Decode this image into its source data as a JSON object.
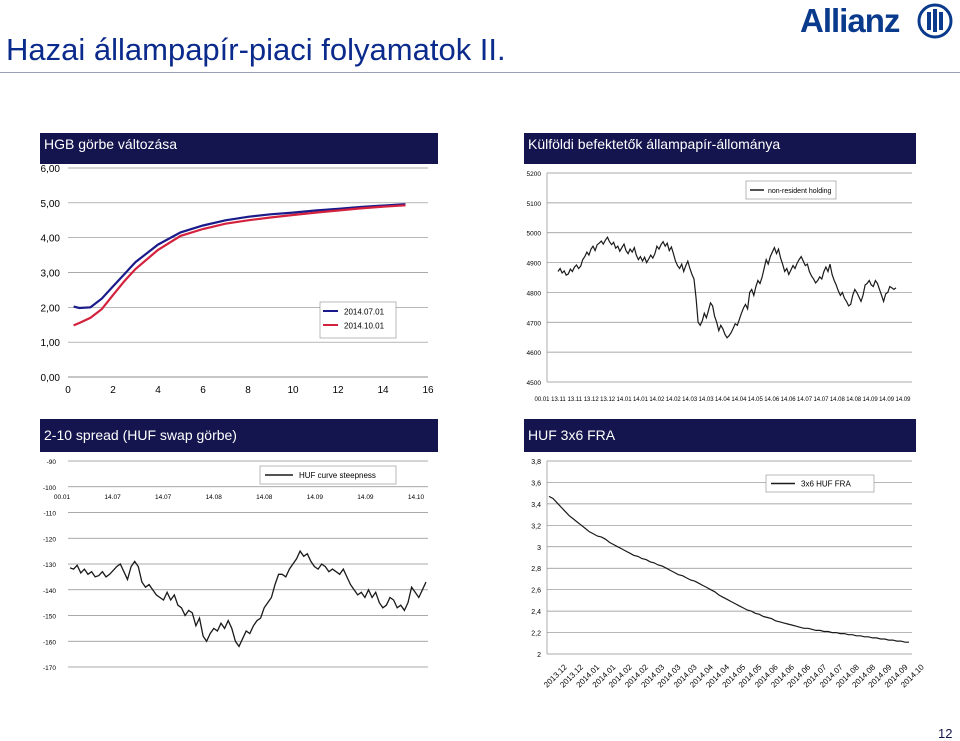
{
  "page": {
    "title": "Hazai állampapír-piaci folyamatok II.",
    "logo": "Allianz",
    "page_number": "12"
  },
  "colors": {
    "header_bg": "#14144e",
    "line_dark": "#1a1a1a",
    "curve_dark_blue": "#1a1a8a",
    "curve_red": "#d4213d",
    "grid": "#8c8c8c"
  },
  "panels": {
    "p1": {
      "heading": "HGB görbe változása"
    },
    "p2": {
      "heading": "Külföldi befektetők állampapír-állománya"
    },
    "p3": {
      "heading": "2-10 spread (HUF swap görbe)"
    },
    "p4": {
      "heading": "HUF 3x6 FRA"
    }
  },
  "chart_data": [
    {
      "id": "hgb",
      "type": "line",
      "ylim": [
        0,
        6
      ],
      "xlim": [
        0,
        16
      ],
      "y_ticks": [
        "0,00",
        "1,00",
        "2,00",
        "3,00",
        "4,00",
        "5,00",
        "6,00"
      ],
      "x_ticks": [
        "0",
        "2",
        "4",
        "6",
        "8",
        "10",
        "12",
        "14",
        "16"
      ],
      "series": [
        {
          "name": "2014.07.01",
          "color": "#1a1a8a",
          "x": [
            0.25,
            0.5,
            1,
            1.5,
            2,
            2.5,
            3,
            4,
            5,
            6,
            7,
            8,
            9,
            10,
            11,
            12,
            13,
            14,
            15
          ],
          "y": [
            2.02,
            1.98,
            2.0,
            2.25,
            2.6,
            2.95,
            3.3,
            3.8,
            4.15,
            4.35,
            4.5,
            4.6,
            4.67,
            4.72,
            4.78,
            4.83,
            4.88,
            4.92,
            4.96
          ]
        },
        {
          "name": "2014.10.01",
          "color": "#d4213d",
          "x": [
            0.25,
            0.5,
            1,
            1.5,
            2,
            2.5,
            3,
            4,
            5,
            6,
            7,
            8,
            9,
            10,
            11,
            12,
            13,
            14,
            15
          ],
          "y": [
            1.48,
            1.55,
            1.7,
            1.95,
            2.35,
            2.75,
            3.1,
            3.65,
            4.05,
            4.25,
            4.4,
            4.5,
            4.58,
            4.65,
            4.72,
            4.78,
            4.84,
            4.89,
            4.93
          ]
        }
      ]
    },
    {
      "id": "foreign_holdings",
      "type": "line",
      "ylim": [
        4500,
        5200
      ],
      "y_ticks": [
        "4500",
        "4600",
        "4700",
        "4800",
        "4900",
        "5000",
        "5100",
        "5200"
      ],
      "x_ticks": [
        "00.01",
        "13.11",
        "13.11",
        "13.12",
        "13.12",
        "14.01",
        "14.01",
        "14.02",
        "14.02",
        "14.03",
        "14.03",
        "14.04",
        "14.04",
        "14.05",
        "14.06",
        "14.06",
        "14.07",
        "14.07",
        "14.08",
        "14.08",
        "14.09",
        "14.09",
        "14.09"
      ],
      "series": [
        {
          "name": "non-resident holding",
          "color": "#1a1a1a",
          "values": [
            4870,
            4880,
            4865,
            4872,
            4858,
            4862,
            4878,
            4870,
            4885,
            4892,
            4880,
            4888,
            4910,
            4920,
            4935,
            4925,
            4945,
            4955,
            4940,
            4960,
            4965,
            4972,
            4962,
            4975,
            4985,
            4970,
            4960,
            4968,
            4948,
            4955,
            4938,
            4950,
            4962,
            4940,
            4930,
            4945,
            4935,
            4950,
            4925,
            4910,
            4920,
            4905,
            4918,
            4900,
            4912,
            4925,
            4915,
            4930,
            4955,
            4945,
            4960,
            4970,
            4955,
            4965,
            4940,
            4952,
            4930,
            4905,
            4890,
            4880,
            4895,
            4870,
            4890,
            4905,
            4880,
            4860,
            4845,
            4780,
            4700,
            4690,
            4705,
            4730,
            4715,
            4740,
            4765,
            4755,
            4720,
            4700,
            4672,
            4690,
            4678,
            4660,
            4648,
            4655,
            4665,
            4680,
            4695,
            4690,
            4710,
            4730,
            4748,
            4760,
            4745,
            4800,
            4810,
            4790,
            4820,
            4840,
            4830,
            4850,
            4880,
            4910,
            4895,
            4920,
            4935,
            4950,
            4930,
            4945,
            4915,
            4895,
            4870,
            4880,
            4860,
            4875,
            4890,
            4880,
            4898,
            4910,
            4920,
            4905,
            4890,
            4895,
            4870,
            4855,
            4845,
            4832,
            4840,
            4852,
            4845,
            4870,
            4885,
            4870,
            4895,
            4860,
            4840,
            4825,
            4805,
            4790,
            4800,
            4780,
            4770,
            4755,
            4760,
            4790,
            4810,
            4800,
            4785,
            4770,
            4790,
            4825,
            4830,
            4840,
            4825,
            4820,
            4840,
            4830,
            4810,
            4790,
            4770,
            4795,
            4800,
            4820,
            4815,
            4810,
            4815
          ]
        }
      ]
    },
    {
      "id": "spread",
      "type": "line",
      "ylim": [
        -170,
        -90
      ],
      "y_ticks": [
        "-90",
        "-100",
        "-110",
        "-120",
        "-130",
        "-140",
        "-150",
        "-160",
        "-170"
      ],
      "x_ticks": [
        "00.01",
        "14.07",
        "14.07",
        "14.08",
        "14.08",
        "14.09",
        "14.09",
        "14.10"
      ],
      "series": [
        {
          "name": "HUF curve steepness",
          "color": "#1a1a1a",
          "values": [
            -131.5,
            -132,
            -130.5,
            -133.5,
            -132,
            -134,
            -133,
            -135,
            -134.5,
            -133,
            -135,
            -134,
            -132.5,
            -131,
            -130,
            -133,
            -136,
            -131,
            -129,
            -131,
            -137,
            -139,
            -138,
            -140,
            -142,
            -143,
            -144,
            -141,
            -144,
            -142,
            -146,
            -147,
            -150,
            -148,
            -149,
            -154,
            -151,
            -158,
            -160,
            -157,
            -155,
            -156,
            -153,
            -155,
            -152,
            -155,
            -160,
            -162,
            -159,
            -156,
            -157,
            -154,
            -152,
            -151,
            -147,
            -145,
            -143,
            -138,
            -134,
            -134,
            -135,
            -132,
            -130,
            -128,
            -125,
            -127,
            -126,
            -129,
            -131,
            -132,
            -130,
            -131,
            -133,
            -132,
            -133,
            -134,
            -132,
            -135,
            -138,
            -140,
            -142,
            -141,
            -143,
            -140,
            -143,
            -141,
            -145,
            -147,
            -146,
            -143,
            -144,
            -147,
            -146,
            -148,
            -145,
            -139,
            -141,
            -143,
            -140,
            -137
          ]
        }
      ]
    },
    {
      "id": "fra",
      "type": "line",
      "ylim": [
        2,
        3.8
      ],
      "y_ticks": [
        "2",
        "2,2",
        "2,4",
        "2,6",
        "2,8",
        "3",
        "3,2",
        "3,4",
        "3,6",
        "3,8"
      ],
      "x_ticks": [
        "2013.12",
        "2013.12",
        "2014.01",
        "2014.01",
        "2014.02",
        "2014.02",
        "2014.03",
        "2014.03",
        "2014.03",
        "2014.04",
        "2014.04",
        "2014.05",
        "2014.05",
        "2014.06",
        "2014.06",
        "2014.06",
        "2014.07",
        "2014.07",
        "2014.08",
        "2014.08",
        "2014.09",
        "2014.09",
        "2014.10"
      ],
      "series": [
        {
          "name": "3x6 HUF FRA",
          "color": "#1a1a1a",
          "values": [
            3.47,
            3.45,
            3.41,
            3.37,
            3.33,
            3.29,
            3.26,
            3.23,
            3.2,
            3.17,
            3.14,
            3.12,
            3.1,
            3.09,
            3.07,
            3.04,
            3.02,
            3.0,
            2.98,
            2.96,
            2.94,
            2.92,
            2.91,
            2.89,
            2.88,
            2.86,
            2.85,
            2.83,
            2.82,
            2.8,
            2.78,
            2.76,
            2.74,
            2.73,
            2.71,
            2.69,
            2.68,
            2.66,
            2.64,
            2.62,
            2.6,
            2.58,
            2.55,
            2.53,
            2.51,
            2.49,
            2.47,
            2.45,
            2.43,
            2.41,
            2.4,
            2.38,
            2.37,
            2.35,
            2.34,
            2.33,
            2.31,
            2.3,
            2.29,
            2.28,
            2.27,
            2.26,
            2.25,
            2.24,
            2.24,
            2.23,
            2.22,
            2.22,
            2.21,
            2.21,
            2.2,
            2.2,
            2.19,
            2.19,
            2.18,
            2.18,
            2.17,
            2.17,
            2.16,
            2.16,
            2.15,
            2.15,
            2.14,
            2.14,
            2.13,
            2.13,
            2.12,
            2.12,
            2.11,
            2.11
          ]
        }
      ]
    }
  ]
}
